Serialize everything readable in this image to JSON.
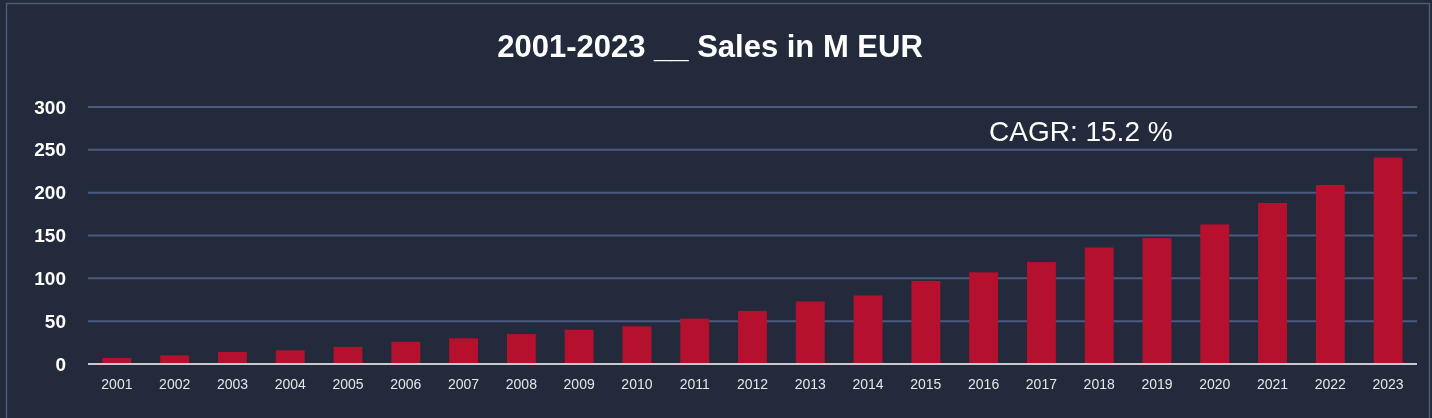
{
  "chart_data": {
    "type": "bar",
    "title": "2001-2023 __ Sales in M EUR",
    "categories": [
      "2001",
      "2002",
      "2003",
      "2004",
      "2005",
      "2006",
      "2007",
      "2008",
      "2009",
      "2010",
      "2011",
      "2012",
      "2013",
      "2014",
      "2015",
      "2016",
      "2017",
      "2018",
      "2019",
      "2020",
      "2021",
      "2022",
      "2023"
    ],
    "values": [
      7,
      10,
      14,
      16,
      20,
      26,
      30,
      35,
      40,
      44,
      53,
      62,
      73,
      80,
      97,
      107,
      119,
      136,
      147,
      163,
      188,
      209,
      241
    ],
    "color": "#b5112e",
    "ylim": [
      0,
      300
    ],
    "yticks": [
      0,
      50,
      100,
      150,
      200,
      250,
      300
    ],
    "grid": "y",
    "annotations": [
      "CAGR: 15.2 %"
    ]
  }
}
